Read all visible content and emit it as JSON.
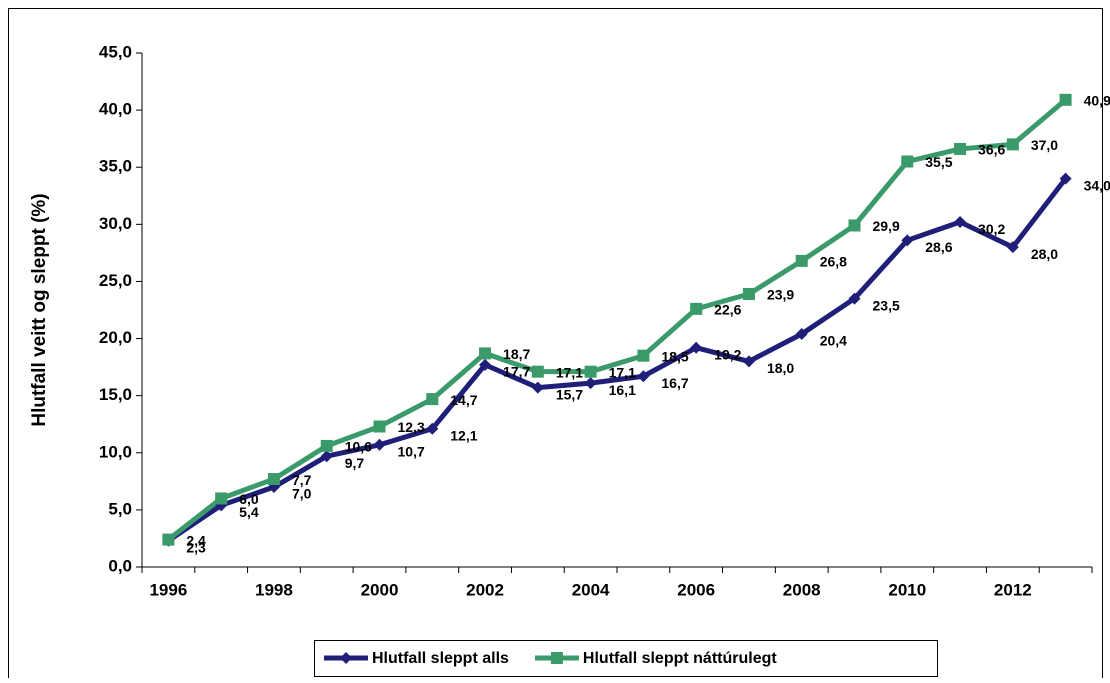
{
  "chart_data": {
    "type": "line",
    "y_label": "Hlutfall veitt og sleppt (%)",
    "categories": [
      "1996",
      null,
      "1998",
      null,
      "2000",
      null,
      "2002",
      null,
      "2004",
      null,
      "2006",
      null,
      "2008",
      null,
      "2010",
      null,
      "2012",
      null
    ],
    "series": [
      {
        "name": "Hlutfall sleppt alls",
        "color": "#1f1f7a",
        "marker": "diamond",
        "values": [
          2.3,
          5.4,
          7.0,
          9.7,
          10.7,
          12.1,
          17.7,
          15.7,
          16.1,
          16.7,
          19.2,
          18.0,
          20.4,
          23.5,
          28.6,
          30.2,
          28.0,
          34.0
        ],
        "value_labels": [
          "2,3",
          "5,4",
          "7,0",
          "9,7",
          "10,7",
          "12,1",
          "17,7",
          "15,7",
          "16,1",
          "16,7",
          "19,2",
          "18,0",
          "20,4",
          "23,5",
          "28,6",
          "30,2",
          "28,0",
          "34,0"
        ]
      },
      {
        "name": "Hlutfall sleppt náttúrulegt",
        "color": "#3a9a6a",
        "marker": "square",
        "values": [
          2.4,
          6.0,
          7.7,
          10.6,
          12.3,
          14.7,
          18.7,
          17.1,
          17.1,
          18.5,
          22.6,
          23.9,
          26.8,
          29.9,
          35.5,
          36.6,
          37.0,
          40.9
        ],
        "value_labels": [
          "2,4",
          "6,0",
          "7,7",
          "10,6",
          "12,3",
          "14,7",
          "18,7",
          "17,1",
          "17,1",
          "18,5",
          "22,6",
          "23,9",
          "26,8",
          "29,9",
          "35,5",
          "36,6",
          "37,0",
          "40,9"
        ]
      }
    ],
    "ylim": [
      0,
      45
    ],
    "yticks": [
      {
        "value": 0,
        "label": "0,0"
      },
      {
        "value": 5,
        "label": "5,0"
      },
      {
        "value": 10,
        "label": "10,0"
      },
      {
        "value": 15,
        "label": "15,0"
      },
      {
        "value": 20,
        "label": "20,0"
      },
      {
        "value": 25,
        "label": "25,0"
      },
      {
        "value": 30,
        "label": "30,0"
      },
      {
        "value": 35,
        "label": "35,0"
      },
      {
        "value": 40,
        "label": "40,0"
      },
      {
        "value": 45,
        "label": "45,0"
      }
    ],
    "grid": false,
    "legend": "bottom"
  }
}
